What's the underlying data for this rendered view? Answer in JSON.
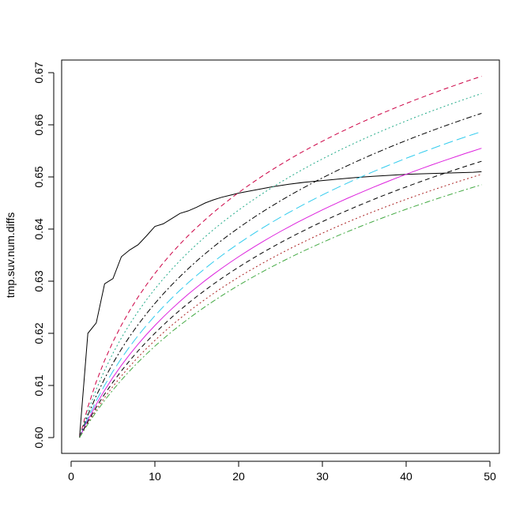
{
  "chart_data": {
    "type": "line",
    "title": "",
    "xlabel": "",
    "ylabel": "tmp.suv.num.diffs",
    "xlim": [
      0,
      50
    ],
    "ylim": [
      0.597,
      0.672
    ],
    "x_ticks": [
      0,
      10,
      20,
      30,
      40,
      50
    ],
    "y_ticks": [
      0.6,
      0.61,
      0.62,
      0.63,
      0.64,
      0.65,
      0.66,
      0.67
    ],
    "y_tick_labels": [
      "0.60",
      "0.61",
      "0.62",
      "0.63",
      "0.64",
      "0.65",
      "0.66",
      "0.67"
    ],
    "x_tick_labels": [
      "0",
      "10",
      "20",
      "30",
      "40",
      "50"
    ],
    "grid": false,
    "legend": "none",
    "series": [
      {
        "color": "#000000",
        "dash": "solid",
        "x": [
          1,
          2,
          3,
          4,
          5,
          6,
          7,
          8,
          9,
          10,
          11,
          12,
          13,
          14,
          15,
          16,
          17,
          18,
          19,
          20,
          22,
          24,
          26,
          28,
          30,
          32,
          34,
          36,
          38,
          40,
          42,
          44,
          46,
          48,
          49
        ],
        "values": [
          0.6,
          0.62,
          0.622,
          0.6295,
          0.6305,
          0.6347,
          0.636,
          0.637,
          0.6387,
          0.6405,
          0.641,
          0.642,
          0.643,
          0.6435,
          0.6442,
          0.645,
          0.6456,
          0.6461,
          0.6465,
          0.6469,
          0.6475,
          0.6481,
          0.6486,
          0.649,
          0.6493,
          0.6496,
          0.6499,
          0.6501,
          0.6503,
          0.6505,
          0.6506,
          0.6507,
          0.6508,
          0.6509,
          0.651
        ]
      },
      {
        "color": "#cc0044",
        "dash": "dashed",
        "x": [
          1,
          49
        ],
        "values": [
          0.6,
          0.6693
        ],
        "end": 0.6693,
        "start": 0.6,
        "shape_k": 4.2
      },
      {
        "color": "#22aa88",
        "dash": "dotted",
        "x": [
          1,
          49
        ],
        "values": [
          0.6,
          0.666
        ],
        "end": 0.666,
        "start": 0.6,
        "shape_k": 5.2
      },
      {
        "color": "#000000",
        "dash": "dashdot",
        "x": [
          1,
          49
        ],
        "values": [
          0.6,
          0.6622
        ],
        "end": 0.6622,
        "start": 0.6,
        "shape_k": 6.2
      },
      {
        "color": "#33ccee",
        "dash": "longdash",
        "x": [
          1,
          49
        ],
        "values": [
          0.6,
          0.6587
        ],
        "end": 0.6587,
        "start": 0.6,
        "shape_k": 7.2
      },
      {
        "color": "#dd22dd",
        "dash": "solid",
        "x": [
          1,
          49
        ],
        "values": [
          0.6,
          0.6555
        ],
        "end": 0.6555,
        "start": 0.6,
        "shape_k": 8.0
      },
      {
        "color": "#000000",
        "dash": "dashed",
        "x": [
          1,
          49
        ],
        "values": [
          0.6,
          0.653
        ],
        "end": 0.653,
        "start": 0.6,
        "shape_k": 8.8
      },
      {
        "color": "#aa2222",
        "dash": "dotted",
        "x": [
          1,
          49
        ],
        "values": [
          0.6,
          0.6505
        ],
        "end": 0.6505,
        "start": 0.6,
        "shape_k": 9.6
      },
      {
        "color": "#44aa44",
        "dash": "dashdot",
        "x": [
          1,
          49
        ],
        "values": [
          0.6,
          0.6485
        ],
        "end": 0.6485,
        "start": 0.6,
        "shape_k": 10.4
      }
    ]
  }
}
